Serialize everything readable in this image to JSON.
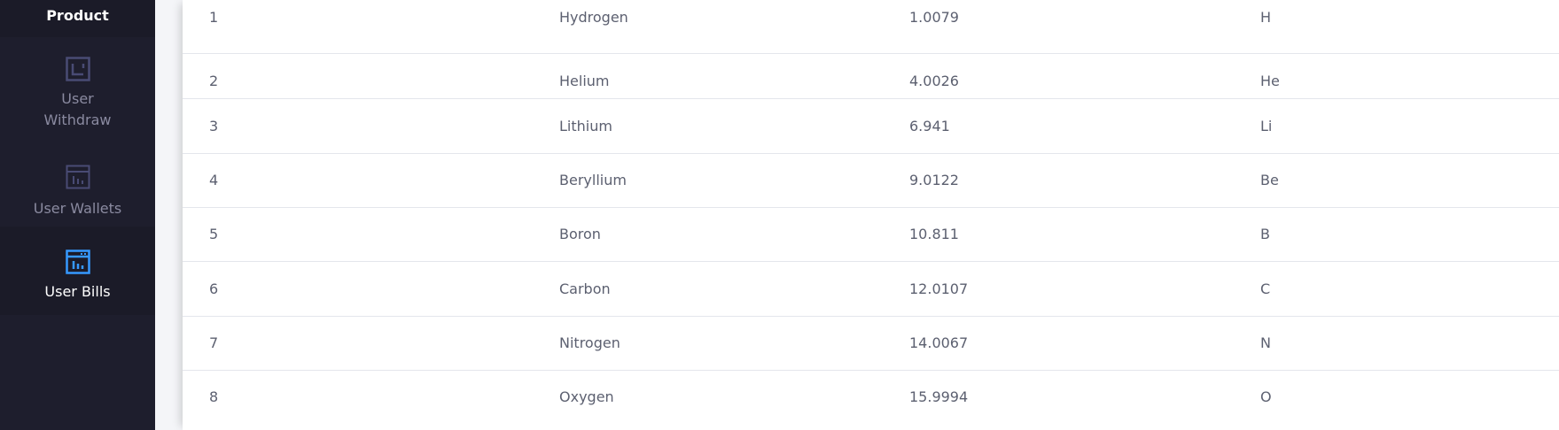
{
  "sidebar": {
    "items": [
      {
        "label": "Product",
        "icon": "none",
        "active": false
      },
      {
        "label": "User\nWithdraw",
        "label_line1": "User",
        "label_line2": "Withdraw",
        "icon": "withdraw-frame-icon",
        "active": false
      },
      {
        "label": "User Wallets",
        "icon": "wallet-chart-icon",
        "active": false
      },
      {
        "label": "User Bills",
        "icon": "bills-chart-icon",
        "active": true
      }
    ],
    "colors": {
      "background": "#1e1e2d",
      "active_icon": "#3699ff",
      "inactive_icon": "#494b74",
      "inactive_text": "#8a8aa0"
    }
  },
  "table": {
    "rows": [
      {
        "position": "1",
        "name": "Hydrogen",
        "weight": "1.0079",
        "symbol": "H"
      },
      {
        "position": "2",
        "name": "Helium",
        "weight": "4.0026",
        "symbol": "He"
      },
      {
        "position": "3",
        "name": "Lithium",
        "weight": "6.941",
        "symbol": "Li"
      },
      {
        "position": "4",
        "name": "Beryllium",
        "weight": "9.0122",
        "symbol": "Be"
      },
      {
        "position": "5",
        "name": "Boron",
        "weight": "10.811",
        "symbol": "B"
      },
      {
        "position": "6",
        "name": "Carbon",
        "weight": "12.0107",
        "symbol": "C"
      },
      {
        "position": "7",
        "name": "Nitrogen",
        "weight": "14.0067",
        "symbol": "N"
      },
      {
        "position": "8",
        "name": "Oxygen",
        "weight": "15.9994",
        "symbol": "O"
      }
    ]
  }
}
